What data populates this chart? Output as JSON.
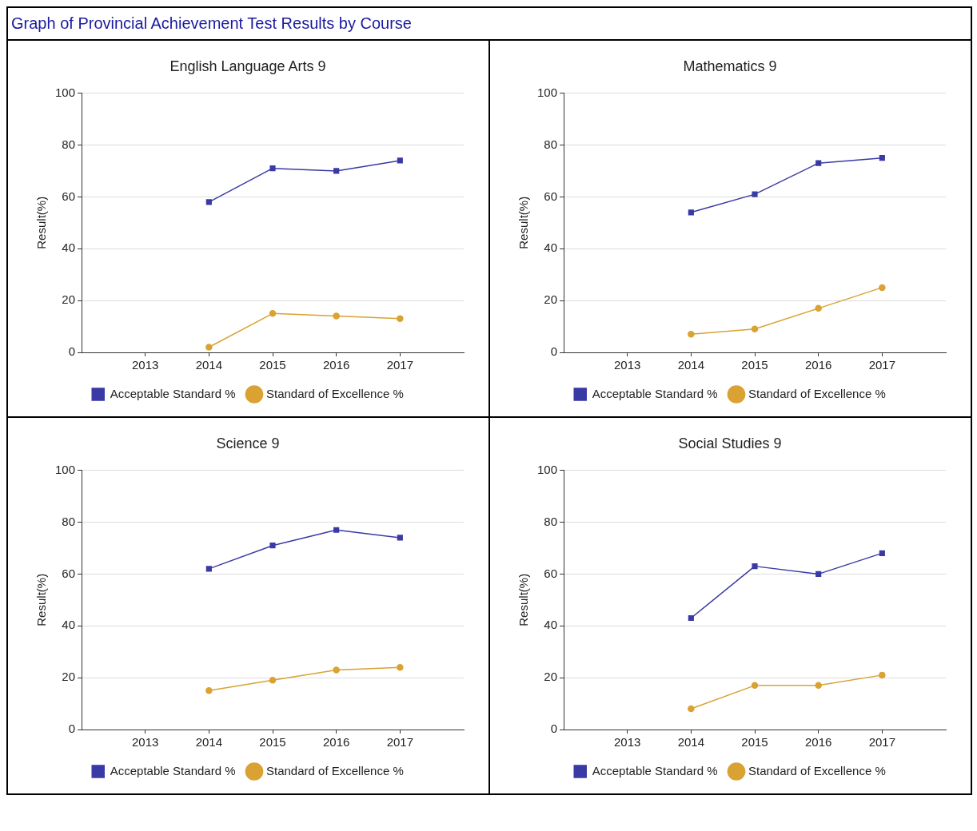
{
  "chart_data": [
    {
      "type": "line",
      "title": "English Language Arts 9",
      "ylabel": "Result(%)",
      "annotations": [
        "Graph of Provincial Achievement Test Results by Course"
      ],
      "categories": [
        "2013",
        "2014",
        "2015",
        "2016",
        "2017"
      ],
      "ylim": [
        0,
        100
      ],
      "yticks": [
        0,
        20,
        40,
        60,
        80,
        100
      ],
      "grid": "y",
      "legend": "bottom",
      "series": [
        {
          "name": "Acceptable Standard %",
          "color": "#3a3aa6",
          "marker": "square",
          "values": [
            null,
            58,
            71,
            70,
            74
          ]
        },
        {
          "name": "Standard of Excellence %",
          "color": "#d9a232",
          "marker": "circle",
          "values": [
            null,
            2,
            15,
            14,
            13
          ]
        }
      ]
    },
    {
      "type": "line",
      "title": "Mathematics 9",
      "ylabel": "Result(%)",
      "categories": [
        "2013",
        "2014",
        "2015",
        "2016",
        "2017"
      ],
      "ylim": [
        0,
        100
      ],
      "yticks": [
        0,
        20,
        40,
        60,
        80,
        100
      ],
      "grid": "y",
      "legend": "bottom",
      "series": [
        {
          "name": "Acceptable Standard %",
          "color": "#3a3aa6",
          "marker": "square",
          "values": [
            null,
            54,
            61,
            73,
            75
          ]
        },
        {
          "name": "Standard of Excellence %",
          "color": "#d9a232",
          "marker": "circle",
          "values": [
            null,
            7,
            9,
            17,
            25
          ]
        }
      ]
    },
    {
      "type": "line",
      "title": "Science 9",
      "ylabel": "Result(%)",
      "categories": [
        "2013",
        "2014",
        "2015",
        "2016",
        "2017"
      ],
      "ylim": [
        0,
        100
      ],
      "yticks": [
        0,
        20,
        40,
        60,
        80,
        100
      ],
      "grid": "y",
      "legend": "bottom",
      "series": [
        {
          "name": "Acceptable Standard %",
          "color": "#3a3aa6",
          "marker": "square",
          "values": [
            null,
            62,
            71,
            77,
            74
          ]
        },
        {
          "name": "Standard of Excellence %",
          "color": "#d9a232",
          "marker": "circle",
          "values": [
            null,
            15,
            19,
            23,
            24
          ]
        }
      ]
    },
    {
      "type": "line",
      "title": "Social Studies 9",
      "ylabel": "Result(%)",
      "categories": [
        "2013",
        "2014",
        "2015",
        "2016",
        "2017"
      ],
      "ylim": [
        0,
        100
      ],
      "yticks": [
        0,
        20,
        40,
        60,
        80,
        100
      ],
      "grid": "y",
      "legend": "bottom",
      "series": [
        {
          "name": "Acceptable Standard %",
          "color": "#3a3aa6",
          "marker": "square",
          "values": [
            null,
            43,
            63,
            60,
            68
          ]
        },
        {
          "name": "Standard of Excellence %",
          "color": "#d9a232",
          "marker": "circle",
          "values": [
            null,
            8,
            17,
            17,
            21
          ]
        }
      ]
    }
  ]
}
